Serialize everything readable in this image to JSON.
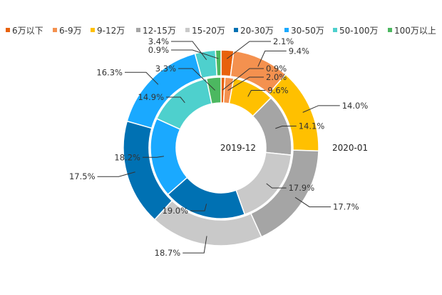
{
  "chart_data": {
    "type": "pie",
    "variant": "nested-donut",
    "categories": [
      "6万以下",
      "6-9万",
      "9-12万",
      "12-15万",
      "15-20万",
      "20-30万",
      "30-50万",
      "50-100万",
      "100万以上"
    ],
    "colors": [
      "#e8620c",
      "#f4914f",
      "#ffc000",
      "#a5a5a5",
      "#c9c9c9",
      "#0071b3",
      "#1aa9ff",
      "#4ed0cd",
      "#4cb860"
    ],
    "series": [
      {
        "name": "2019-12",
        "ring": "inner",
        "values": [
          0.9,
          2.0,
          9.6,
          14.1,
          17.9,
          19.0,
          18.2,
          14.9,
          3.3
        ],
        "labels": [
          "0.9%",
          "2.0%",
          "9.6%",
          "14.1%",
          "17.9%",
          "19.0%",
          "18.2%",
          "14.9%",
          "3.3%"
        ]
      },
      {
        "name": "2020-01",
        "ring": "outer",
        "values": [
          2.1,
          9.4,
          14.0,
          17.7,
          18.7,
          17.5,
          16.3,
          3.4,
          0.9
        ],
        "labels": [
          "2.1%",
          "9.4%",
          "14.0%",
          "17.7%",
          "18.7%",
          "17.5%",
          "16.3%",
          "3.4%",
          "0.9%"
        ]
      }
    ],
    "legend_position": "top"
  }
}
